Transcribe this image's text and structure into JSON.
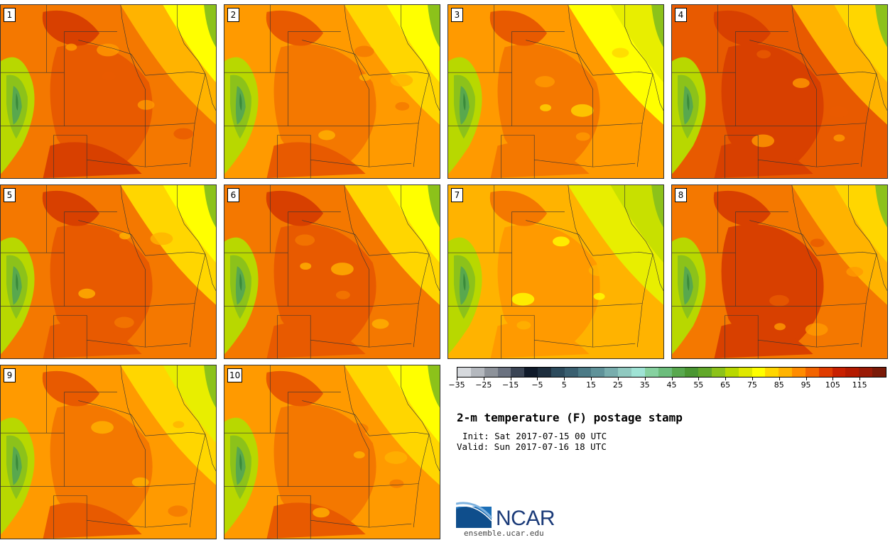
{
  "title": "2-m temperature (F) postage stamp",
  "init": "Init: Sat 2017-07-15 00 UTC",
  "valid": "Valid: Sun 2017-07-16 18 UTC",
  "logo": {
    "name": "NCAR",
    "url": "ensemble.ucar.edu"
  },
  "members": [
    {
      "label": "1",
      "warmth": 0.72
    },
    {
      "label": "2",
      "warmth": 0.66
    },
    {
      "label": "3",
      "warmth": 0.58
    },
    {
      "label": "4",
      "warmth": 0.82
    },
    {
      "label": "5",
      "warmth": 0.7
    },
    {
      "label": "6",
      "warmth": 0.71
    },
    {
      "label": "7",
      "warmth": 0.45
    },
    {
      "label": "8",
      "warmth": 0.8
    },
    {
      "label": "9",
      "warmth": 0.62
    },
    {
      "label": "10",
      "warmth": 0.64
    }
  ],
  "colorbar": {
    "colors": [
      "#d6d9dd",
      "#b4b8be",
      "#8d929a",
      "#6b7280",
      "#3a4454",
      "#101a2a",
      "#1e2e3e",
      "#2c4a5c",
      "#3a5f70",
      "#4c7a86",
      "#5f9299",
      "#78adad",
      "#90c9c0",
      "#9fe3d5",
      "#86d1a0",
      "#6cbd7c",
      "#58a84e",
      "#4a9632",
      "#62a82a",
      "#8cc21a",
      "#b8d800",
      "#dfe800",
      "#ffff00",
      "#ffd600",
      "#ffb300",
      "#ff8c00",
      "#f26400",
      "#e03c00",
      "#c82000",
      "#b41a00",
      "#9a1a06",
      "#7a1a08"
    ],
    "ticks": [
      "−35",
      "−25",
      "−15",
      "−5",
      "5",
      "15",
      "25",
      "35",
      "45",
      "55",
      "65",
      "75",
      "85",
      "95",
      "105",
      "115"
    ]
  }
}
